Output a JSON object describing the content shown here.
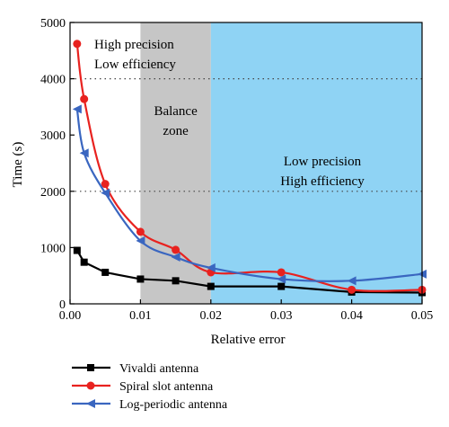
{
  "chart_data": {
    "type": "line",
    "xlabel": "Relative error",
    "ylabel": "Time (s)",
    "xlim": [
      0,
      0.05
    ],
    "ylim": [
      0,
      5000
    ],
    "xticks": [
      "0.00",
      "0.01",
      "0.02",
      "0.03",
      "0.04",
      "0.05"
    ],
    "yticks": [
      "0",
      "1000",
      "2000",
      "3000",
      "4000",
      "5000"
    ],
    "grid": "dotted horizontal lines at 2000 and 4000",
    "legend_position": "below plot, left",
    "zones": [
      {
        "label_lines": [
          "High precision",
          "Low efficiency"
        ],
        "x_range": [
          0,
          0.01
        ],
        "color": "#ffffff"
      },
      {
        "label_lines": [
          "Balance",
          "zone"
        ],
        "x_range": [
          0.01,
          0.02
        ],
        "color": "#c6c6c6"
      },
      {
        "label_lines": [
          "Low precision",
          "High efficiency"
        ],
        "x_range": [
          0.02,
          0.05
        ],
        "color": "#8fd3f4"
      }
    ],
    "series": [
      {
        "name": "Vivaldi antenna",
        "color": "#000000",
        "marker": "square",
        "x": [
          0.001,
          0.002,
          0.005,
          0.01,
          0.015,
          0.02,
          0.03,
          0.04,
          0.05
        ],
        "values": [
          950,
          740,
          560,
          440,
          410,
          310,
          310,
          210,
          200
        ]
      },
      {
        "name": "Spiral slot antenna",
        "color": "#e8221f",
        "marker": "circle",
        "x": [
          0.001,
          0.002,
          0.005,
          0.01,
          0.015,
          0.02,
          0.03,
          0.04,
          0.05
        ],
        "values": [
          4620,
          3640,
          2130,
          1280,
          960,
          560,
          560,
          250,
          250
        ]
      },
      {
        "name": "Log-periodic antenna",
        "color": "#3a66c0",
        "marker": "triangle-left",
        "x": [
          0.001,
          0.002,
          0.005,
          0.01,
          0.015,
          0.02,
          0.03,
          0.04,
          0.05
        ],
        "values": [
          3460,
          2680,
          1970,
          1120,
          830,
          640,
          440,
          410,
          530
        ]
      }
    ]
  }
}
